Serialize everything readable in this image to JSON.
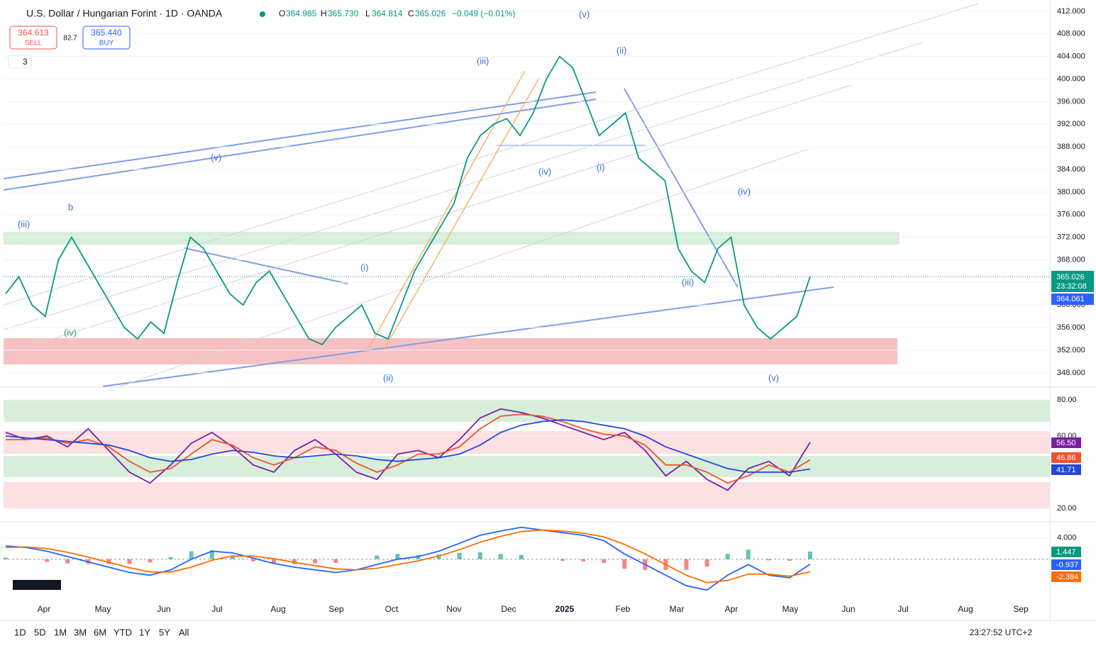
{
  "header": {
    "title": "U.S. Dollar / Hungarian Forint · 1D · OANDA",
    "o": "O",
    "open": "364.985",
    "h": "H",
    "high": "365.730",
    "l": "L",
    "low": "364.814",
    "c": "C",
    "close": "365.026",
    "change": "−0.049 (−0.01%)"
  },
  "trade": {
    "sell_price": "364.613",
    "sell": "SELL",
    "spread": "82.7",
    "buy_price": "365.440",
    "buy": "BUY",
    "layers": "3"
  },
  "price_labels": {
    "last": "365.026",
    "countdown": "23:32:08",
    "ma": "364.061"
  },
  "rsi_labels": [
    "56.50",
    "46.86",
    "41.71"
  ],
  "macd_labels": [
    "1.447",
    "-0.937",
    "-2.384"
  ],
  "annotations": [
    "(v)",
    "(iii)",
    "(ii)",
    "(iv)",
    "(i)",
    "(iii)",
    "(iv)",
    "(v)",
    "(i)",
    "(ii)",
    "(iv)",
    "(v)",
    "b",
    "(iii)"
  ],
  "x_labels": [
    "Apr",
    "May",
    "Jun",
    "Jul",
    "Aug",
    "Sep",
    "Oct",
    "Nov",
    "Dec",
    "2025",
    "Feb",
    "Mar",
    "Apr",
    "May",
    "Jun",
    "Jul",
    "Aug",
    "Sep"
  ],
  "toolbar": [
    "1D",
    "5D",
    "1M",
    "3M",
    "6M",
    "YTD",
    "1Y",
    "5Y",
    "All"
  ],
  "clock": "23:27:52 UTC+2",
  "chart_data": [
    {
      "type": "line",
      "color": "#089981",
      "values": [
        362,
        365,
        360,
        358,
        368,
        372,
        368,
        364,
        360,
        356,
        354,
        357,
        355,
        364,
        372,
        370,
        366,
        362,
        360,
        364,
        366,
        362,
        358,
        354,
        353,
        356,
        358,
        360,
        355,
        354,
        360,
        366,
        370,
        374,
        378,
        386,
        390,
        392,
        393,
        390,
        394,
        400,
        404,
        402,
        396,
        390,
        392,
        394,
        386,
        384,
        382,
        370,
        366,
        364,
        370,
        372,
        360,
        356,
        354,
        356,
        358,
        365.026
      ],
      "ylim": [
        345.6,
        414
      ],
      "yticks": [
        {
          "value": 348,
          "label": "348.000"
        },
        {
          "value": 352,
          "label": "352.000"
        },
        {
          "value": 356,
          "label": "356.000"
        },
        {
          "value": 360,
          "label": "360.000"
        },
        {
          "value": 364,
          "label": "364.000"
        },
        {
          "value": 368,
          "label": "368.000"
        },
        {
          "value": 372,
          "label": "372.000"
        },
        {
          "value": 376,
          "label": "376.000"
        },
        {
          "value": 380,
          "label": "380.000"
        },
        {
          "value": 384,
          "label": "384.000"
        },
        {
          "value": 388,
          "label": "388.000"
        },
        {
          "value": 392,
          "label": "392.000"
        },
        {
          "value": 396,
          "label": "396.000"
        },
        {
          "value": 400,
          "label": "400.000"
        },
        {
          "value": 404,
          "label": "404.000"
        },
        {
          "value": 408,
          "label": "408.000"
        },
        {
          "value": 412,
          "label": "412.000"
        }
      ]
    },
    {
      "type": "line",
      "ylim": [
        13.7,
        86.3
      ],
      "yticks": [
        {
          "value": 80,
          "label": "80.00"
        },
        {
          "value": 60,
          "label": "60.00"
        },
        {
          "value": 20,
          "label": "20.00"
        }
      ],
      "series": [
        {
          "color": "#7b1fa2",
          "values": [
            62,
            58,
            60,
            54,
            64,
            52,
            40,
            34,
            44,
            56,
            62,
            54,
            44,
            40,
            52,
            58,
            50,
            40,
            36,
            50,
            52,
            48,
            58,
            70,
            75,
            73,
            70,
            66,
            62,
            58,
            62,
            52,
            38,
            46,
            36,
            30,
            42,
            46,
            38,
            56.5
          ]
        },
        {
          "color": "#f0522e",
          "values": [
            58,
            58,
            59,
            56,
            58,
            54,
            46,
            40,
            42,
            50,
            58,
            55,
            48,
            44,
            48,
            54,
            52,
            45,
            40,
            44,
            50,
            50,
            54,
            64,
            71,
            72,
            71,
            68,
            64,
            61,
            60,
            55,
            44,
            44,
            40,
            34,
            38,
            44,
            40,
            46.86
          ]
        },
        {
          "color": "#2447d6",
          "values": [
            60,
            59,
            58,
            57,
            56,
            55,
            52,
            48,
            46,
            47,
            50,
            52,
            51,
            49,
            48,
            49,
            50,
            49,
            47,
            46,
            47,
            48,
            50,
            55,
            62,
            66,
            68,
            69,
            68,
            66,
            64,
            60,
            54,
            50,
            46,
            42,
            40,
            40,
            40,
            41.71
          ]
        }
      ]
    },
    {
      "type": "macd",
      "ylim": [
        -7.5,
        6.5
      ],
      "yticks": [
        {
          "value": 4,
          "label": "4.000"
        }
      ],
      "series": [
        {
          "color": "#2962ff",
          "values": [
            2.5,
            2.2,
            1.5,
            0.5,
            -0.5,
            -1.5,
            -2.5,
            -3,
            -2,
            0,
            1.5,
            1.2,
            0.2,
            -0.8,
            -1.5,
            -2,
            -2.5,
            -2,
            -1,
            0,
            0.5,
            1.5,
            3,
            4.5,
            5.3,
            6,
            5.5,
            5,
            4.5,
            3.5,
            1,
            -1,
            -3,
            -5,
            -5.8,
            -3,
            -1,
            -3,
            -3.5,
            -0.937
          ]
        },
        {
          "color": "#ff6d00",
          "values": [
            2.2,
            2.3,
            2,
            1.3,
            0.4,
            -0.6,
            -1.6,
            -2.4,
            -2.4,
            -1.5,
            -0.2,
            0.6,
            0.6,
            0.1,
            -0.6,
            -1.2,
            -1.8,
            -2,
            -1.7,
            -1,
            -0.3,
            0.6,
            1.8,
            3.2,
            4.3,
            5.2,
            5.5,
            5.3,
            4.9,
            4.2,
            2.8,
            1,
            -1,
            -3,
            -4.4,
            -4,
            -2.8,
            -2.8,
            -3.2,
            -2.384
          ]
        }
      ],
      "histogram": [
        0.3,
        -0.1,
        -0.5,
        -0.8,
        -0.9,
        -0.9,
        -0.9,
        -0.6,
        0.4,
        1.5,
        1.7,
        0.6,
        -0.4,
        -0.9,
        -0.9,
        -0.8,
        -0.7,
        0,
        0.7,
        1,
        0.8,
        0.9,
        1.2,
        1.3,
        1,
        0.8,
        0,
        -0.3,
        -0.4,
        -0.7,
        -1.8,
        -2,
        -2,
        -2,
        -1.4,
        1,
        1.8,
        -0.2,
        -0.3,
        1.447
      ],
      "histogram_colors": [
        "#26a69a",
        "#ef5350"
      ]
    }
  ]
}
